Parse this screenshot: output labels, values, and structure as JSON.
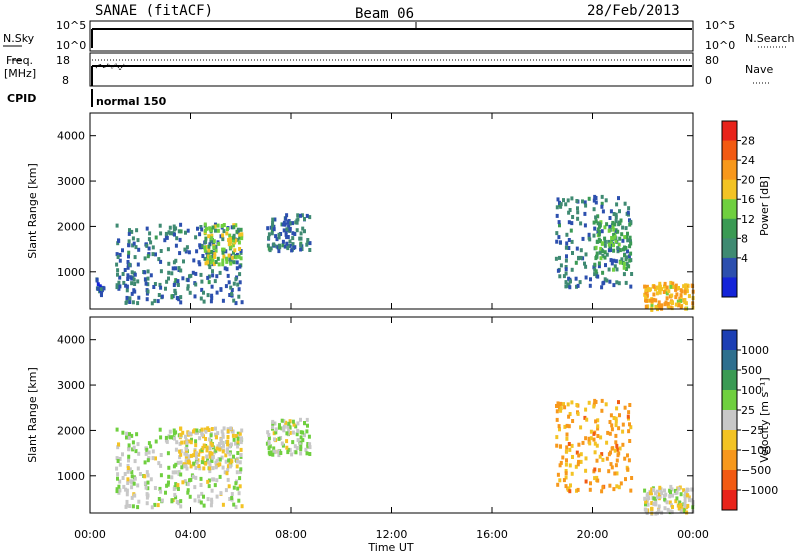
{
  "header": {
    "station": "SANAE (fitACF)",
    "beam": "Beam 06",
    "date": "28/Feb/2013"
  },
  "top_panel": {
    "left_label": "N.Sky",
    "right_label": "N.Search",
    "left_ticks": [
      "10^5",
      "10^0"
    ],
    "right_ticks": [
      "10^5",
      "10^0"
    ]
  },
  "freq_panel": {
    "left_label_1": "Freq.",
    "left_label_2": "[MHz]",
    "right_label": "Nave",
    "left_ticks": [
      "18",
      "8"
    ],
    "right_ticks": [
      "80",
      "0"
    ]
  },
  "cpid": {
    "label": "CPID",
    "mode": "normal 150"
  },
  "power_panel": {
    "ylabel": "Slant Range [km]",
    "cbar_label": "Power [dB]",
    "cbar_ticks": [
      "28",
      "24",
      "20",
      "16",
      "12",
      "8",
      "4"
    ],
    "cbar_colors": [
      "#e8231b",
      "#f25a12",
      "#f7981c",
      "#f3c324",
      "#6fcf3f",
      "#3a9a54",
      "#3f8a72",
      "#2c4fae",
      "#1424d8"
    ]
  },
  "velocity_panel": {
    "ylabel": "Slant Range [km]",
    "cbar_label": "Velocity [m s⁻¹]",
    "cbar_ticks": [
      "1000",
      "500",
      "100",
      "25",
      "−25",
      "−100",
      "−500",
      "−1000"
    ],
    "cbar_colors": [
      "#1c3fb4",
      "#2e6f8e",
      "#3a9a54",
      "#6fcf3f",
      "#c8c8c8",
      "#f3c324",
      "#f7981c",
      "#f25a12",
      "#e8231b"
    ]
  },
  "x_axis": {
    "label": "Time UT",
    "ticks": [
      "00:00",
      "04:00",
      "08:00",
      "12:00",
      "16:00",
      "20:00",
      "00:00"
    ]
  },
  "chart_data": {
    "type": "heatmap",
    "x_range_hours": [
      0,
      24
    ],
    "y_range_km": [
      180,
      4500
    ],
    "y_ticks": [
      1000,
      2000,
      3000,
      4000
    ],
    "power_echo_regions_db": [
      {
        "t0": 0.2,
        "t1": 0.5,
        "r0": 500,
        "r1": 900,
        "power": 6
      },
      {
        "t0": 1.0,
        "t1": 6.0,
        "r0": 350,
        "r1": 2100,
        "power": 8
      },
      {
        "t0": 4.5,
        "t1": 6.0,
        "r0": 1200,
        "r1": 2100,
        "power": 18
      },
      {
        "t0": 7.0,
        "t1": 8.7,
        "r0": 1500,
        "r1": 2300,
        "power": 8
      },
      {
        "t0": 18.5,
        "t1": 21.5,
        "r0": 700,
        "r1": 2700,
        "power": 8
      },
      {
        "t0": 20.0,
        "t1": 21.5,
        "r0": 1000,
        "r1": 2200,
        "power": 14
      },
      {
        "t0": 22.0,
        "t1": 24.0,
        "r0": 200,
        "r1": 800,
        "power": 22
      }
    ],
    "velocity_echo_regions_ms": [
      {
        "t0": 1.0,
        "t1": 6.0,
        "r0": 350,
        "r1": 2100,
        "velocity": 100
      },
      {
        "t0": 3.5,
        "t1": 6.0,
        "r0": 1200,
        "r1": 2100,
        "velocity": -100
      },
      {
        "t0": 7.0,
        "t1": 8.7,
        "r0": 1500,
        "r1": 2300,
        "velocity": 100
      },
      {
        "t0": 18.5,
        "t1": 21.5,
        "r0": 700,
        "r1": 2700,
        "velocity": -500
      },
      {
        "t0": 22.0,
        "t1": 24.0,
        "r0": 200,
        "r1": 800,
        "velocity": -25
      }
    ]
  }
}
